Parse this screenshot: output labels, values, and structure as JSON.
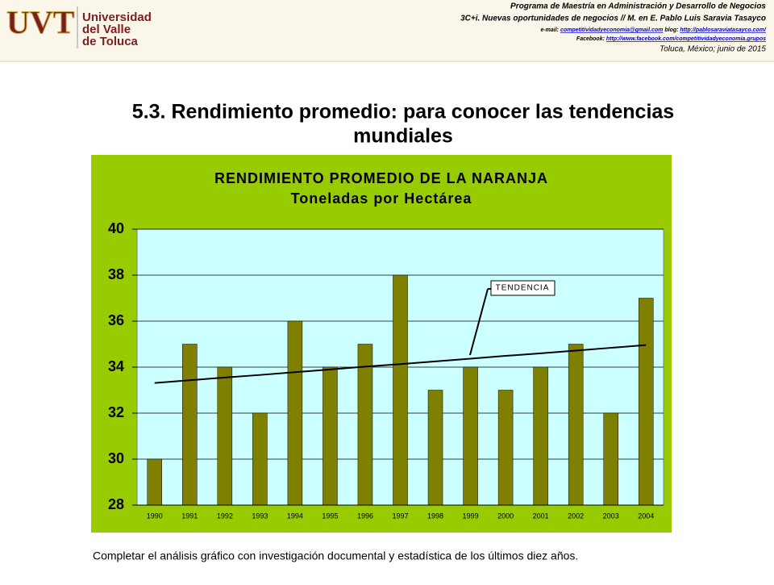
{
  "header": {
    "program": "Programa de Maestría en Administración y Desarrollo de Negocios",
    "course": "3C+i. Nuevas oportunidades  de negocios // M. en E. Pablo Luis Saravia Tasayco",
    "email_label": "e-mail:",
    "email": "competitividadyeconomia@gmail.com",
    "blog_label": "blog:",
    "blog": "http://pablosaraviatasayco.com/",
    "facebook_label": "Facebook:",
    "facebook": "http://www.facebook.com/competitividadyeconomia.grupos",
    "place_date": "Toluca, México; junio de 2015"
  },
  "logo": {
    "mark": "UVT",
    "name": [
      "Universidad",
      "del Valle",
      "de Toluca"
    ]
  },
  "slide": {
    "title": [
      "5.3. Rendimiento promedio: para conocer las tendencias",
      "mundiales"
    ],
    "footer": "Completar el análisis gráfico con investigación documental y estadística de los últimos diez años."
  },
  "chart_data": {
    "type": "bar",
    "title": "RENDIMIENTO PROMEDIO DE LA NARANJA",
    "subtitle": "Toneladas por Hectárea",
    "categories": [
      "1990",
      "1991",
      "1992",
      "1993",
      "1994",
      "1995",
      "1996",
      "1997",
      "1998",
      "1999",
      "2000",
      "2001",
      "2002",
      "2003",
      "2004"
    ],
    "values": [
      30,
      35,
      34,
      32,
      36,
      34,
      35,
      38,
      33,
      34,
      33,
      34,
      35,
      32,
      37
    ],
    "color": "#808000",
    "trend": {
      "name": "TENDENCIA",
      "color": "#000000",
      "values": [
        33.31,
        33.43,
        33.55,
        33.66,
        33.78,
        33.9,
        34.02,
        34.13,
        34.25,
        34.37,
        34.49,
        34.6,
        34.72,
        34.84,
        34.96
      ]
    },
    "ylim": [
      28,
      40
    ],
    "yticks": [
      28,
      30,
      32,
      34,
      36,
      38,
      40
    ],
    "grid": true
  }
}
